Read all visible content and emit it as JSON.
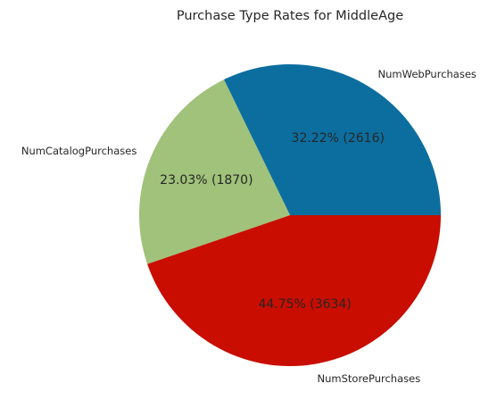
{
  "chart_data": {
    "type": "pie",
    "title": "Purchase Type Rates for MiddleAge",
    "slices": [
      {
        "label": "NumWebPurchases",
        "value": 2616,
        "percent": 32.22,
        "pct_text": "32.22%  (2616)",
        "color": "#0c6e9f"
      },
      {
        "label": "NumCatalogPurchases",
        "value": 1870,
        "percent": 23.03,
        "pct_text": "23.03%  (1870)",
        "color": "#a0c27a"
      },
      {
        "label": "NumStorePurchases",
        "value": 3634,
        "percent": 44.75,
        "pct_text": "44.75%  (3634)",
        "color": "#c90d00"
      }
    ]
  }
}
